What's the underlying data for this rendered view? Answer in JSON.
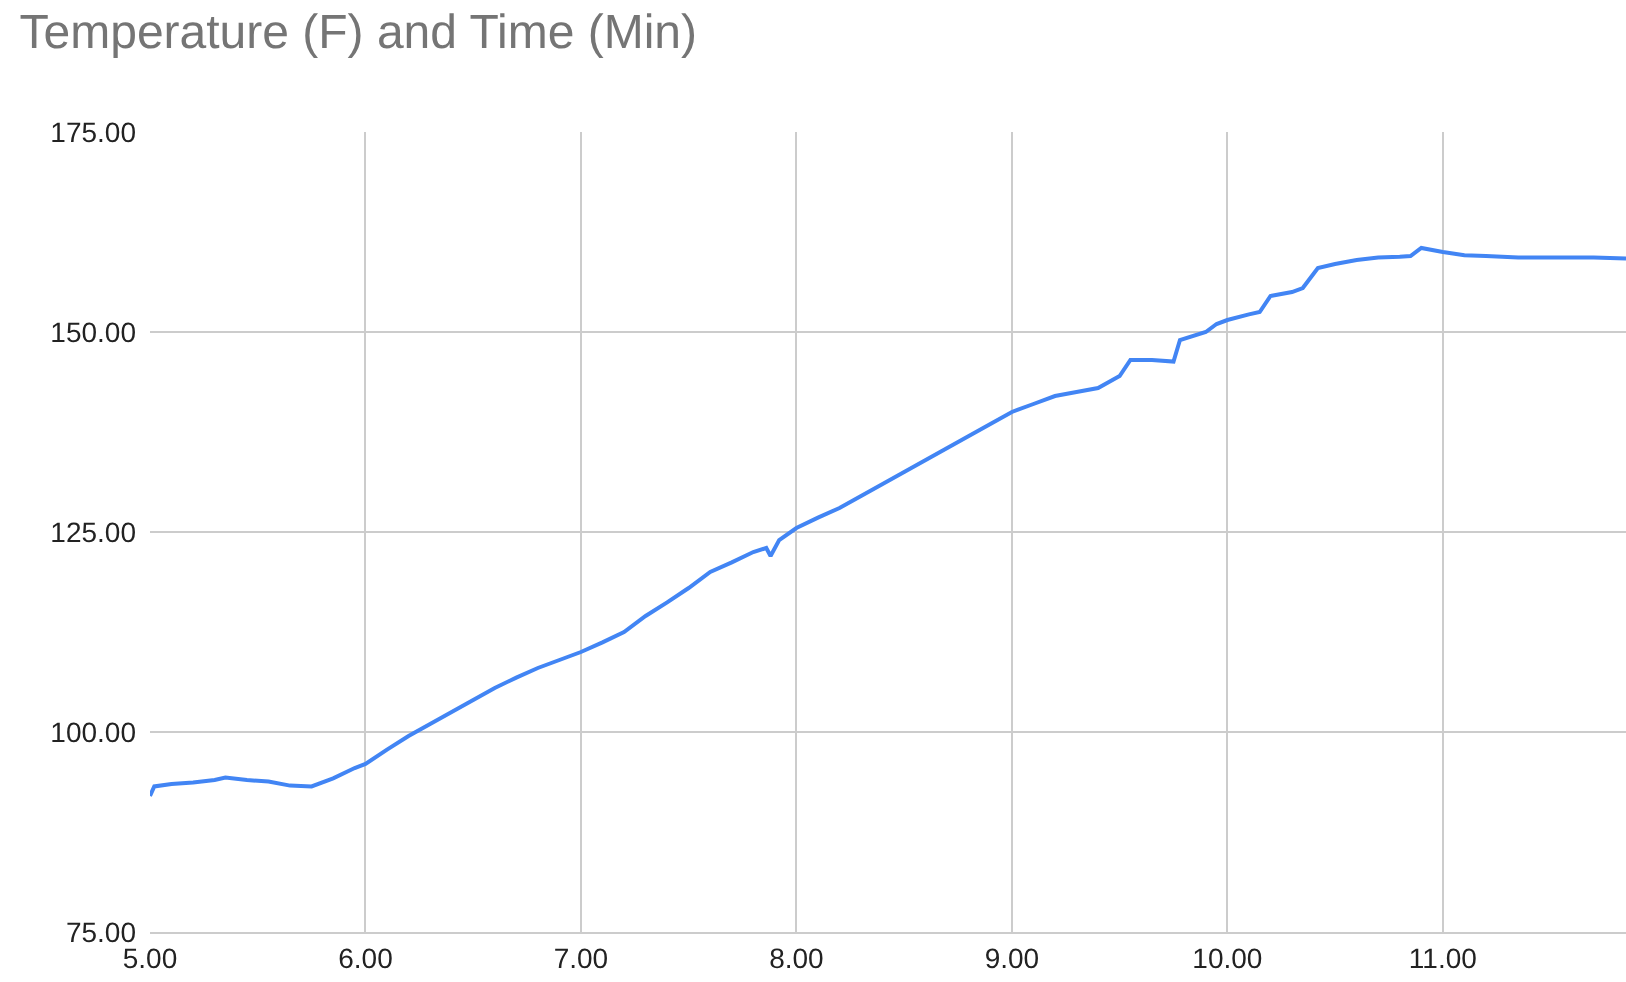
{
  "chart_data": {
    "type": "line",
    "title": "Temperature (F) and Time (Min)",
    "series": [
      {
        "color": "#4285f4",
        "x": [
          5.0,
          5.02,
          5.1,
          5.2,
          5.3,
          5.35,
          5.45,
          5.55,
          5.65,
          5.75,
          5.85,
          5.95,
          6.0,
          6.1,
          6.2,
          6.3,
          6.4,
          6.5,
          6.6,
          6.7,
          6.8,
          6.9,
          7.0,
          7.1,
          7.2,
          7.3,
          7.4,
          7.5,
          7.6,
          7.7,
          7.8,
          7.86,
          7.88,
          7.92,
          8.0,
          8.1,
          8.2,
          8.3,
          8.4,
          8.5,
          8.6,
          8.7,
          8.8,
          8.9,
          9.0,
          9.1,
          9.2,
          9.3,
          9.4,
          9.5,
          9.55,
          9.65,
          9.75,
          9.78,
          9.9,
          9.95,
          10.0,
          10.1,
          10.15,
          10.2,
          10.3,
          10.35,
          10.42,
          10.5,
          10.6,
          10.7,
          10.8,
          10.85,
          10.9,
          11.0,
          11.1,
          11.2,
          11.35,
          11.5,
          11.7,
          11.85
        ],
        "values": [
          92,
          93.2,
          93.5,
          93.7,
          94,
          94.3,
          94,
          93.8,
          93.3,
          93.2,
          94.2,
          95.5,
          96,
          97.8,
          99.5,
          101,
          102.5,
          104,
          105.5,
          106.8,
          108,
          109,
          110,
          111.2,
          112.5,
          114.5,
          116.2,
          118,
          120,
          121.2,
          122.5,
          123,
          122,
          124,
          125.5,
          126.8,
          128,
          129.5,
          131,
          132.5,
          134,
          135.5,
          137,
          138.5,
          140,
          141,
          142,
          142.5,
          143,
          144.5,
          146.5,
          146.5,
          146.3,
          149,
          150,
          151,
          151.5,
          152.2,
          152.5,
          154.5,
          155,
          155.5,
          158,
          158.5,
          159,
          159.3,
          159.4,
          159.5,
          160.5,
          160,
          159.6,
          159.5,
          159.3,
          159.3,
          159.3,
          159.2
        ]
      }
    ],
    "xlim": [
      5.0,
      11.85
    ],
    "xticks": [
      {
        "value": 5,
        "label": "5.00"
      },
      {
        "value": 6,
        "label": "6.00"
      },
      {
        "value": 7,
        "label": "7.00"
      },
      {
        "value": 8,
        "label": "8.00"
      },
      {
        "value": 9,
        "label": "9.00"
      },
      {
        "value": 10,
        "label": "10.00"
      },
      {
        "value": 11,
        "label": "11.00"
      }
    ],
    "ylim": [
      75,
      175
    ],
    "yticks": [
      {
        "value": 75,
        "label": "75.00"
      },
      {
        "value": 100,
        "label": "100.00"
      },
      {
        "value": 125,
        "label": "125.00"
      },
      {
        "value": 150,
        "label": "150.00"
      },
      {
        "value": 175,
        "label": "175.00"
      }
    ],
    "grid": true
  }
}
